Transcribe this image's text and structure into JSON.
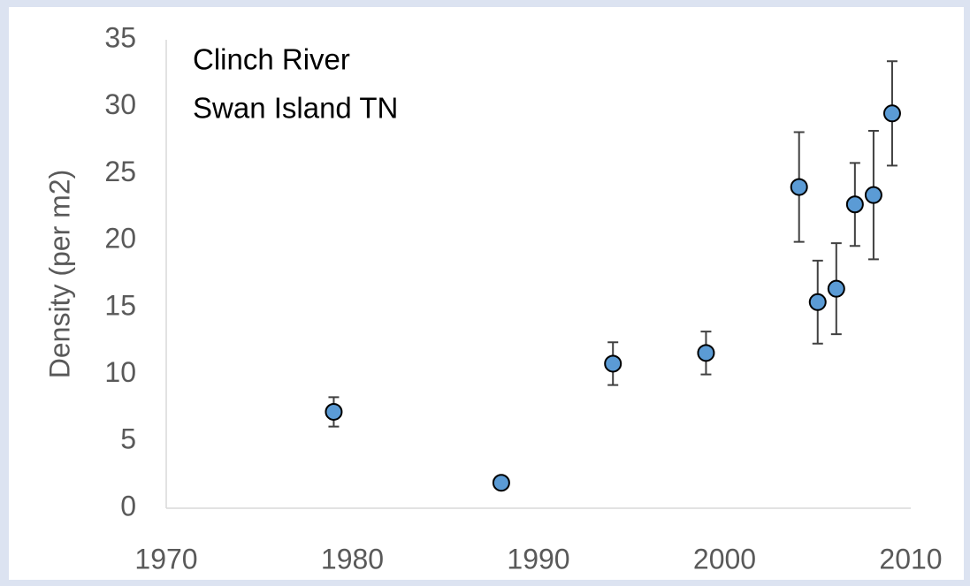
{
  "chart_data": {
    "type": "scatter",
    "annotations": [
      "Clinch River",
      "Swan Island TN"
    ],
    "ylabel": "Density (per m2)",
    "x": [
      1979,
      1988,
      1994,
      1999,
      2004,
      2005,
      2006,
      2007,
      2008,
      2009
    ],
    "values": [
      7.2,
      1.9,
      10.8,
      11.6,
      24.0,
      15.4,
      16.4,
      22.7,
      23.4,
      29.5
    ],
    "errors": [
      1.1,
      0.3,
      1.6,
      1.6,
      4.1,
      3.1,
      3.4,
      3.1,
      4.8,
      3.9
    ],
    "color": "#5b9bd5",
    "xlim": [
      1970,
      2010
    ],
    "xticks": [
      1970,
      1980,
      1990,
      2000,
      2010
    ],
    "ylim": [
      0,
      35
    ],
    "yticks": [
      0,
      5,
      10,
      15,
      20,
      25,
      30,
      35
    ],
    "grid": false
  }
}
